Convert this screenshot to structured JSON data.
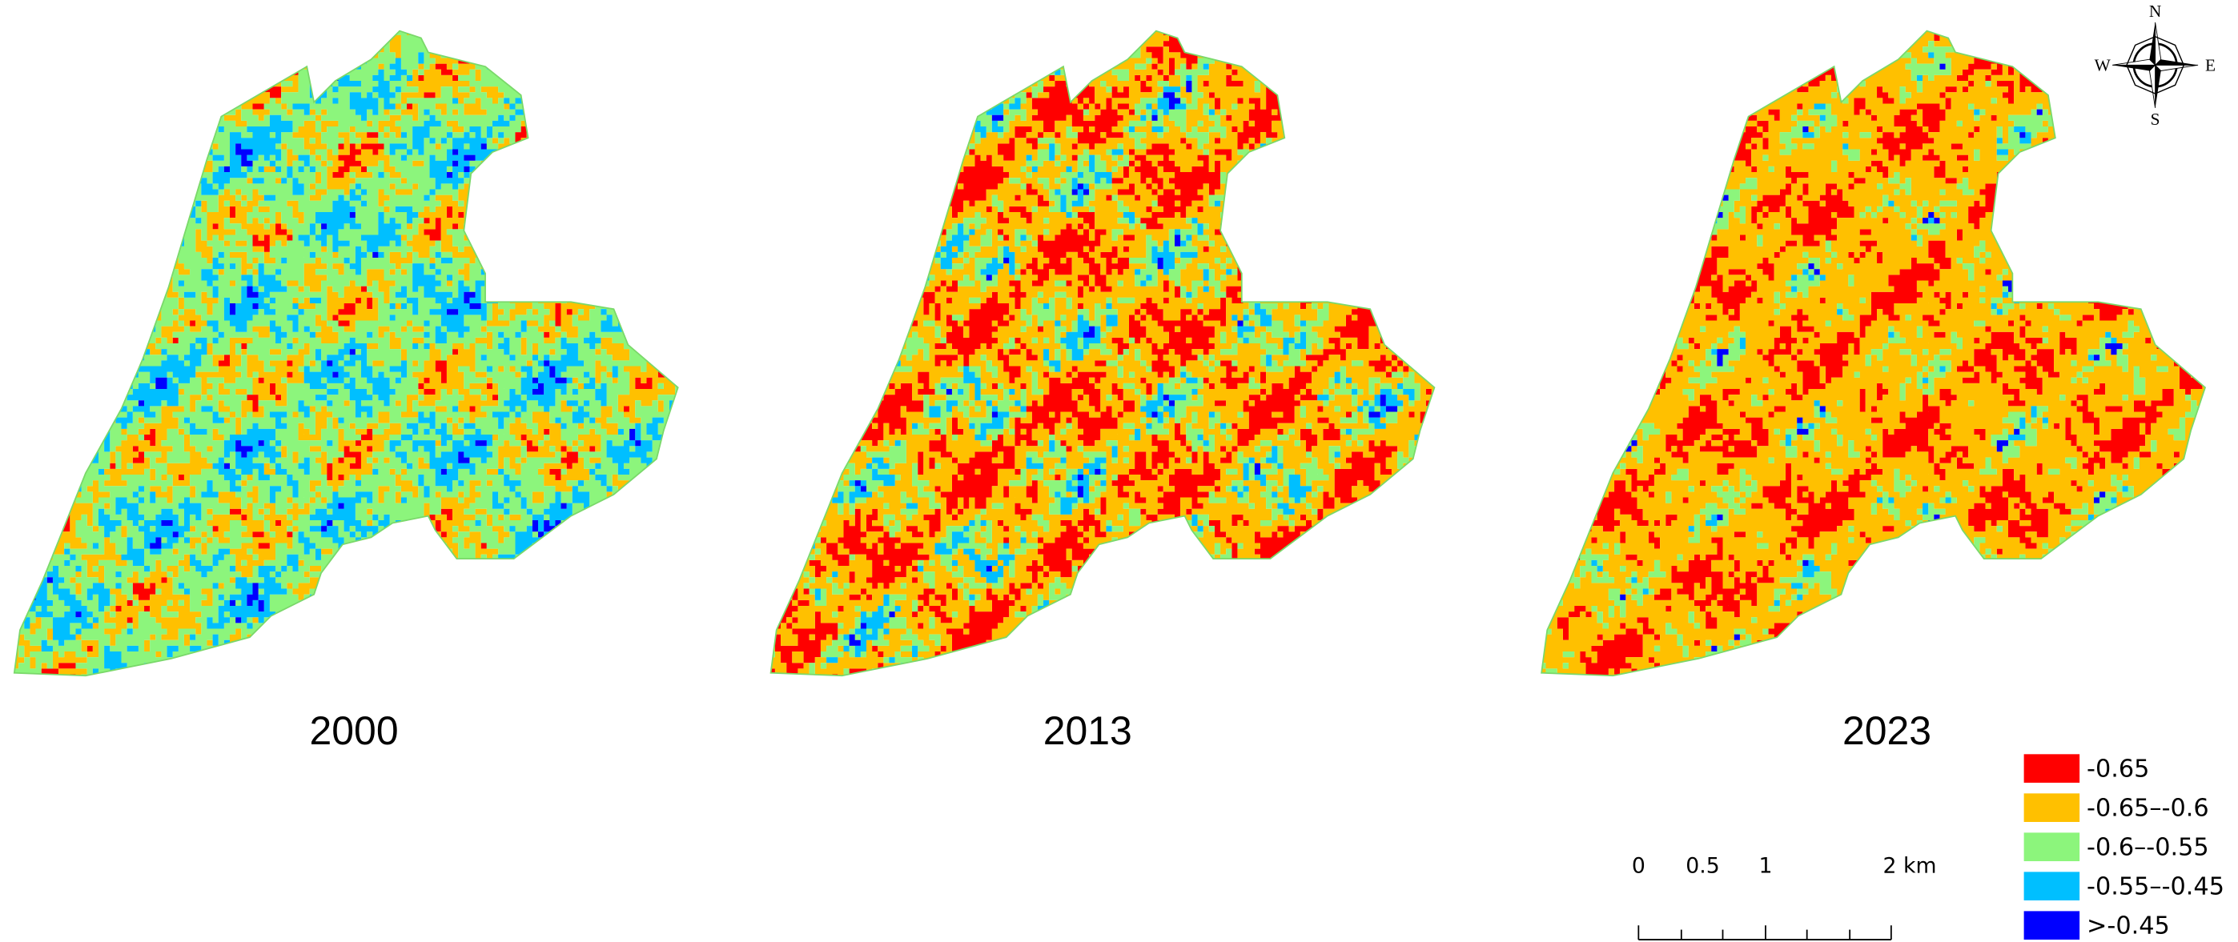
{
  "panels": [
    {
      "year": "2000"
    },
    {
      "year": "2013"
    },
    {
      "year": "2023"
    }
  ],
  "legend": {
    "items": [
      {
        "label": "-0.65",
        "color": "#ff0000"
      },
      {
        "label": "-0.65–-0.6",
        "color": "#ffc000"
      },
      {
        "label": "-0.6–-0.55",
        "color": "#8cf57c"
      },
      {
        "label": "-0.55–-0.45",
        "color": "#00bfff"
      },
      {
        "label": ">-0.45",
        "color": "#0000ff"
      }
    ]
  },
  "scale_bar": {
    "labels": [
      "0",
      "0.5",
      "1",
      "2 km"
    ]
  },
  "compass": {
    "n": "N",
    "s": "S",
    "e": "E",
    "w": "W"
  }
}
